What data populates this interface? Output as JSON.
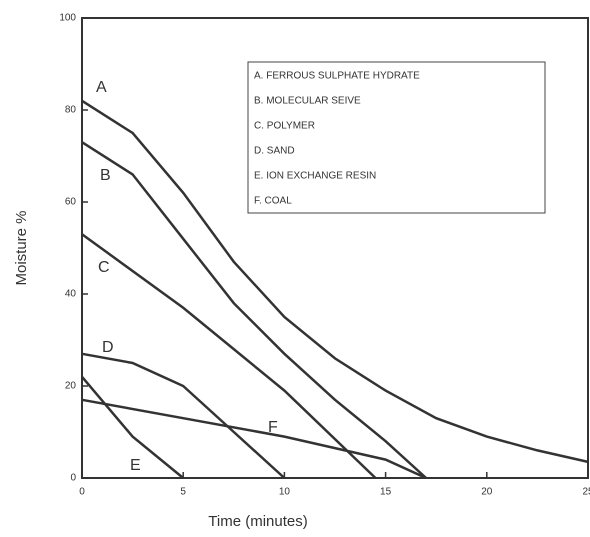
{
  "chart_data": {
    "type": "line",
    "xlabel": "Time (minutes)",
    "ylabel": "Moisture %",
    "xlim": [
      0,
      25
    ],
    "xticks": [
      0,
      5,
      10,
      15,
      20,
      25
    ],
    "ylim": [
      0,
      100
    ],
    "yticks": [
      0,
      20,
      40,
      60,
      80,
      100
    ],
    "color": "#333333",
    "legend": [
      "A. FERROUS SULPHATE HYDRATE",
      "B. MOLECULAR SEIVE",
      "C. POLYMER",
      "D. SAND",
      "E. ION EXCHANGE RESIN",
      "F. COAL"
    ],
    "series": [
      {
        "name": "A",
        "x": [
          0,
          2.5,
          5,
          7.5,
          10,
          12.5,
          15,
          17.5,
          20,
          22.5,
          25
        ],
        "values": [
          82,
          75,
          62,
          47,
          35,
          26,
          19,
          13,
          9,
          6,
          3.5
        ]
      },
      {
        "name": "B",
        "x": [
          0,
          2.5,
          5,
          7.5,
          10,
          12.5,
          15,
          17
        ],
        "values": [
          73,
          66,
          52,
          38,
          27,
          17,
          8,
          0
        ]
      },
      {
        "name": "C",
        "x": [
          0,
          5,
          10,
          14.5
        ],
        "values": [
          53,
          37,
          19,
          0
        ]
      },
      {
        "name": "D",
        "x": [
          0,
          2.5,
          5,
          7.5,
          10
        ],
        "values": [
          27,
          25,
          20,
          10,
          0
        ]
      },
      {
        "name": "E",
        "x": [
          0,
          2.5,
          5
        ],
        "values": [
          22,
          9,
          0
        ]
      },
      {
        "name": "F",
        "x": [
          0,
          5,
          10,
          15,
          17
        ],
        "values": [
          17,
          13,
          9,
          4,
          0
        ]
      }
    ]
  }
}
